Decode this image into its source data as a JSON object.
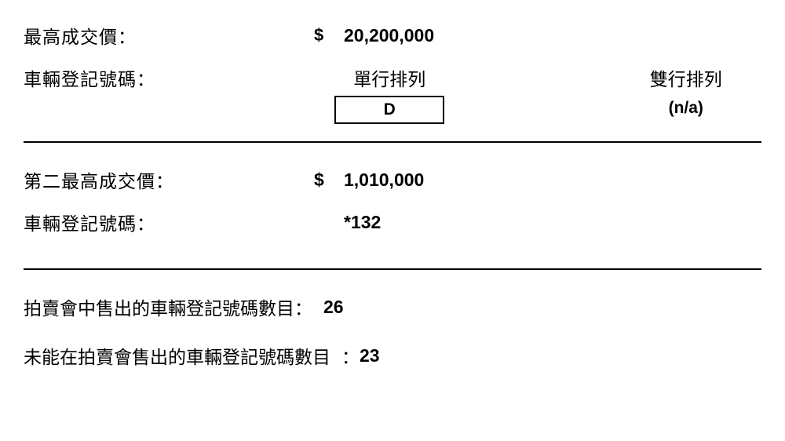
{
  "section1": {
    "highest_price_label": "最高成交價：",
    "currency": "$",
    "highest_price_value": "20,200,000",
    "plate_label": "車輛登記號碼：",
    "single_heading": "單行排列",
    "double_heading": "雙行排列",
    "single_value": "D",
    "double_value": "(n/a)"
  },
  "section2": {
    "second_price_label": "第二最高成交價：",
    "currency": "$",
    "second_price_value": "1,010,000",
    "plate_label": "車輛登記號碼：",
    "plate_value": "*132"
  },
  "section3": {
    "sold_label": "拍賣會中售出的車輛登記號碼數目：",
    "sold_value": "26",
    "unsold_label": "未能在拍賣會售出的車輛登記號碼數目",
    "unsold_colon": "：",
    "unsold_value": "23"
  },
  "style": {
    "text_color": "#000000",
    "background_color": "#ffffff",
    "border_color": "#000000",
    "font_size_label": 23,
    "font_size_value": 23,
    "divider_weight": 2
  }
}
